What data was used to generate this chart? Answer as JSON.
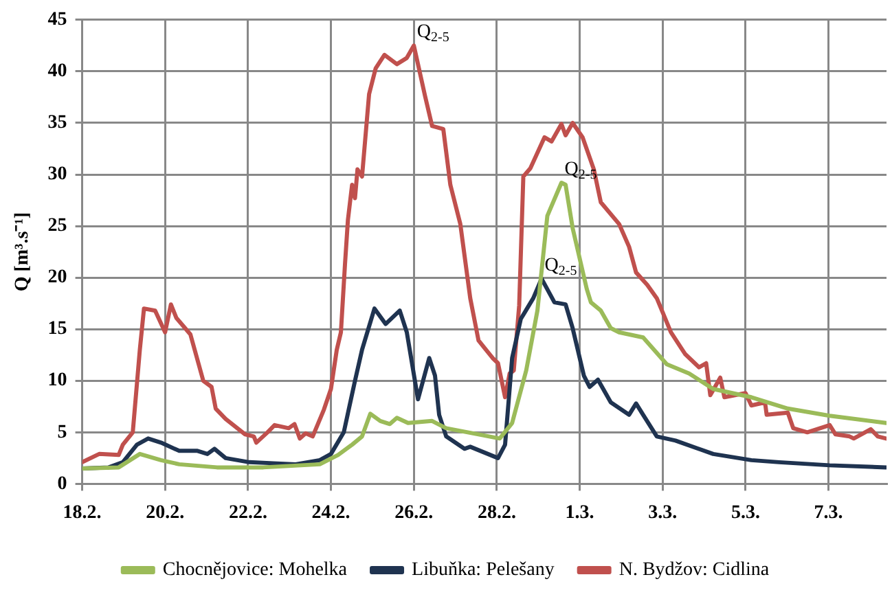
{
  "chart_data": {
    "type": "line",
    "ylabel": "Q [m³.s⁻¹]",
    "xlim": [
      "--02-18",
      "--03-08T09:36"
    ],
    "ylim": [
      0,
      45
    ],
    "xticks": [
      {
        "value": "--02-18",
        "label": "18.2."
      },
      {
        "value": "--02-20",
        "label": "20.2."
      },
      {
        "value": "--02-22",
        "label": "22.2."
      },
      {
        "value": "--02-24",
        "label": "24.2."
      },
      {
        "value": "--02-26",
        "label": "26.2."
      },
      {
        "value": "--02-28",
        "label": "28.2."
      },
      {
        "value": "--03-01",
        "label": "1.3."
      },
      {
        "value": "--03-03",
        "label": "3.3."
      },
      {
        "value": "--03-05",
        "label": "5.3."
      },
      {
        "value": "--03-07",
        "label": "7.3."
      }
    ],
    "yticks": [
      0,
      5,
      10,
      15,
      20,
      25,
      30,
      35,
      40,
      45
    ],
    "grid": true,
    "legend": "bottom",
    "series": [
      {
        "name": "Chocnějovice: Mohelka",
        "color": "#9bbb59",
        "x": [
          "--02-18T00:00",
          "--02-18T21:07",
          "--02-19T09:22",
          "--02-19T21:36",
          "--02-20T08:10",
          "--02-21T06:00",
          "--02-22T08:53",
          "--02-23T17:31",
          "--02-24T04:05",
          "--02-24T12:14",
          "--02-24T18:00",
          "--02-24T22:48",
          "--02-25T04:34",
          "--02-25T10:05",
          "--02-25T14:10",
          "--02-25T20:38",
          "--02-26T10:34",
          "--02-26T18:43",
          "--02-27T13:26",
          "--02-28T01:41",
          "--02-28T08:53",
          "--02-28T17:02",
          "--02-28T23:31",
          "--02-29T05:17",
          "--02-29T13:26",
          "--02-29T15:50",
          "--02-29T19:55",
          "--03-01T04:05",
          "--03-01T06:29",
          "--03-01T12:14",
          "--03-01T18:00",
          "--03-01T22:48",
          "--03-02T12:43",
          "--03-03T02:24",
          "--03-03T15:22",
          "--03-04T05:17",
          "--03-05T03:22",
          "--03-06T00:29",
          "--03-07T00:43",
          "--03-08T09:22"
        ],
        "values": [
          1.5,
          1.6,
          2.9,
          2.3,
          1.9,
          1.6,
          1.6,
          1.9,
          2.8,
          3.8,
          4.6,
          6.8,
          6.1,
          5.8,
          6.4,
          5.9,
          6.1,
          5.4,
          4.8,
          4.4,
          5.9,
          11,
          16.8,
          26,
          29.2,
          29,
          24.8,
          18.9,
          17.6,
          16.8,
          15.1,
          14.7,
          14.2,
          11.6,
          10.7,
          9.2,
          8.4,
          7.3,
          6.6,
          5.9
        ]
      },
      {
        "name": "Libuňka: Pelešany",
        "color": "#1f3350",
        "x": [
          "--02-18T00:00",
          "--02-18T15:22",
          "--02-18T23:31",
          "--02-19T07:41",
          "--02-19T14:10",
          "--02-19T21:36",
          "--02-20T08:10",
          "--02-20T18:43",
          "--02-21T00:29",
          "--02-21T04:34",
          "--02-21T11:02",
          "--02-22T00:43",
          "--02-22T14:38",
          "--02-23T03:36",
          "--02-23T17:31",
          "--02-24T00:00",
          "--02-24T07:26",
          "--02-24T13:55",
          "--02-24T18:00",
          "--02-25T01:12",
          "--02-25T07:41",
          "--02-25T15:50",
          "--02-25T19:55",
          "--02-26T02:24",
          "--02-26T08:53",
          "--02-26T12:14",
          "--02-26T14:38",
          "--02-26T18:43",
          "--02-27T05:17",
          "--02-27T08:38",
          "--02-28T00:43",
          "--02-28T04:48",
          "--02-28T08:53",
          "--02-28T13:55",
          "--02-28T21:07",
          "--02-29T01:55",
          "--02-29T09:22",
          "--02-29T15:50",
          "--02-29T19:55",
          "--03-01T02:24",
          "--03-01T05:46",
          "--03-01T10:34",
          "--03-01T18:00",
          "--03-02T04:34",
          "--03-02T08:38",
          "--03-02T12:43",
          "--03-02T20:38",
          "--03-03T07:26",
          "--03-04T05:17",
          "--03-05T03:22",
          "--03-05T19:26",
          "--03-07T00:43",
          "--03-08T09:22"
        ],
        "values": [
          1.5,
          1.6,
          2.1,
          3.8,
          4.4,
          4,
          3.2,
          3.2,
          2.9,
          3.4,
          2.5,
          2.1,
          2,
          1.9,
          2.3,
          2.9,
          5,
          10,
          13,
          17,
          15.5,
          16.8,
          14.7,
          8.2,
          12.2,
          10.5,
          6.7,
          4.6,
          3.4,
          3.6,
          2.5,
          3.8,
          12.2,
          16,
          18,
          19.9,
          17.6,
          17.4,
          15.1,
          10.5,
          9.4,
          10.1,
          7.9,
          6.7,
          7.8,
          6.7,
          4.6,
          4.2,
          2.9,
          2.3,
          2.1,
          1.8,
          1.6
        ]
      },
      {
        "name": "N. Bydžov: Cidlina",
        "color": "#c0504d",
        "x": [
          "--02-18T00:00",
          "--02-18T09:50",
          "--02-18T21:07",
          "--02-18T23:31",
          "--02-19T05:17",
          "--02-19T09:22",
          "--02-19T11:46",
          "--02-19T18:14",
          "--02-20T00:00",
          "--02-20T03:22",
          "--02-20T06:29",
          "--02-20T14:38",
          "--02-20T22:05",
          "--02-21T02:53",
          "--02-21T05:17",
          "--02-21T11:02",
          "--02-21T22:19",
          "--02-22T03:22",
          "--02-22T04:48",
          "--02-22T11:17",
          "--02-22T15:22",
          "--02-22T23:31",
          "--02-23T02:53",
          "--02-23T06:00",
          "--02-23T09:22",
          "--02-23T13:26",
          "--02-23T19:55",
          "--02-24T00:00",
          "--02-24T03:22",
          "--02-24T05:46",
          "--02-24T08:10",
          "--02-24T09:50",
          "--02-24T12:14",
          "--02-24T13:55",
          "--02-24T15:22",
          "--02-24T18:00",
          "--02-24T22:05",
          "--02-25T01:55",
          "--02-25T06:58",
          "--02-25T14:10",
          "--02-25T19:55",
          "--02-26T00:00",
          "--02-26T06:29",
          "--02-26T10:34",
          "--02-26T17:02",
          "--02-26T21:07",
          "--02-27T02:53",
          "--02-27T08:38",
          "--02-27T13:26",
          "--02-27T21:36",
          "--02-28T00:43",
          "--02-28T04:48",
          "--02-28T07:26",
          "--02-28T09:50",
          "--02-28T12:58",
          "--02-28T15:22",
          "--02-28T19:26",
          "--02-29T03:36",
          "--02-29T07:41",
          "--02-29T13:26",
          "--02-29T15:50",
          "--02-29T19:55",
          "--03-01T01:41",
          "--03-01T08:10",
          "--03-01T12:14",
          "--03-01T22:48",
          "--03-02T04:34",
          "--03-02T08:38",
          "--03-02T15:07",
          "--03-02T20:38",
          "--03-03T04:48",
          "--03-03T12:58",
          "--03-03T21:07",
          "--03-04T01:12",
          "--03-04T03:36",
          "--03-04T09:22",
          "--03-04T11:46",
          "--03-05T00:00",
          "--03-05T03:22",
          "--03-05T11:17",
          "--03-05T12:14",
          "--03-06T00:29",
          "--03-06T03:36",
          "--03-06T11:46",
          "--03-07T00:43",
          "--03-07T04:05",
          "--03-07T12:14",
          "--03-07T14:38",
          "--03-08T00:29",
          "--03-08T04:34",
          "--03-08T09:22"
        ],
        "values": [
          2.1,
          2.9,
          2.8,
          3.8,
          5,
          13,
          17,
          16.8,
          14.7,
          17.4,
          16.1,
          14.5,
          10,
          9.4,
          7.3,
          6.3,
          4.8,
          4.6,
          4,
          5,
          5.7,
          5.4,
          5.8,
          4.4,
          4.9,
          4.6,
          7.2,
          9.2,
          13,
          14.7,
          21.4,
          25.6,
          29,
          27.7,
          30.5,
          29.8,
          37.8,
          40.3,
          41.6,
          40.7,
          41.3,
          42.5,
          37.6,
          34.7,
          34.4,
          29,
          25.2,
          18,
          13.9,
          12.2,
          11.7,
          8.4,
          10.7,
          11,
          17.3,
          29.8,
          30.6,
          33.6,
          33.2,
          34.9,
          33.8,
          35,
          33.6,
          30.5,
          27.3,
          25.2,
          23,
          20.5,
          19.3,
          18,
          14.7,
          12.6,
          11.3,
          11.7,
          8.6,
          10.3,
          8.4,
          8.8,
          7.6,
          7.9,
          6.7,
          6.9,
          5.4,
          5,
          5.7,
          4.8,
          4.6,
          4.4,
          5.3,
          4.6,
          4.4
        ]
      }
    ],
    "annotations": [
      {
        "text": "Q$_{2-5}$",
        "x": "--02-26T00:00",
        "y": 42.5
      },
      {
        "text": "Q$_{2-5}$",
        "x": "--02-29T13:26",
        "y": 29.2
      },
      {
        "text": "Q$_{2-5}$",
        "x": "--02-29T01:55",
        "y": 19.9
      }
    ]
  }
}
